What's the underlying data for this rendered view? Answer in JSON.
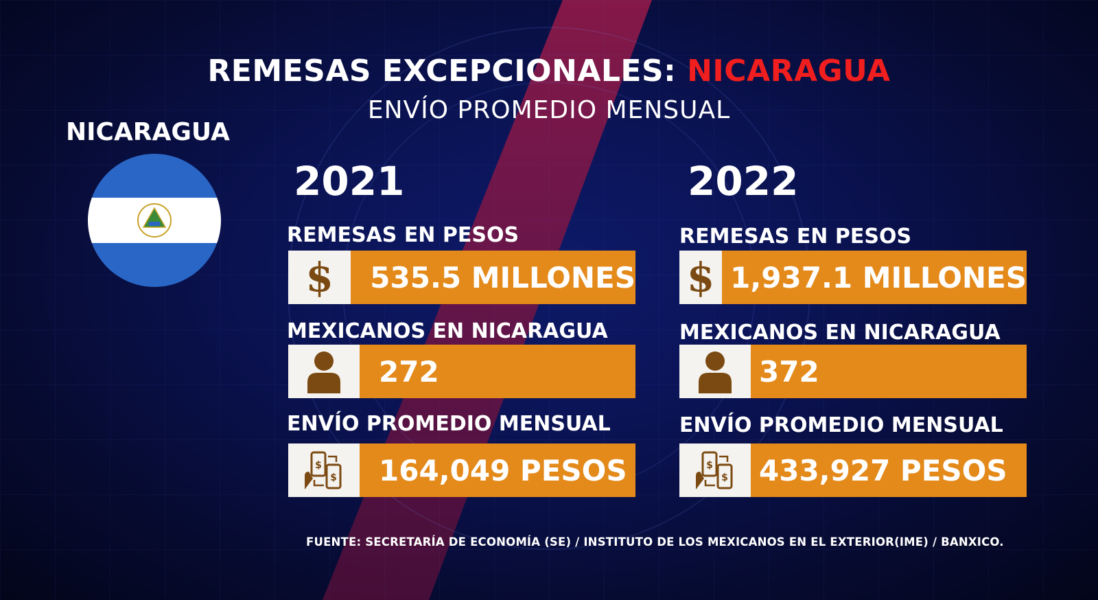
{
  "header": {
    "title_main": "REMESAS EXCEPCIONALES:",
    "title_highlight": "NICARAGUA",
    "subtitle": "ENVÍO PROMEDIO MENSUAL"
  },
  "country": {
    "name": "NICARAGUA"
  },
  "columns": [
    {
      "year": "2021",
      "remesas_label": "REMESAS EN PESOS",
      "remesas_value": "535.5 MILLONES",
      "mexicanos_label": "MEXICANOS EN NICARAGUA",
      "mexicanos_value": "272",
      "envio_label": "ENVÍO PROMEDIO MENSUAL",
      "envio_value": "164,049 PESOS"
    },
    {
      "year": "2022",
      "remesas_label": "REMESAS EN PESOS",
      "remesas_value": "1,937.1 MILLONES",
      "mexicanos_label": "MEXICANOS EN NICARAGUA",
      "mexicanos_value": "372",
      "envio_label": "ENVÍO PROMEDIO MENSUAL",
      "envio_value": "433,927 PESOS"
    }
  ],
  "icons": {
    "money": "dollar-sign-icon",
    "person": "person-icon",
    "transfer": "phone-transfer-icon",
    "dollar_glyph": "$"
  },
  "colors": {
    "accent_orange": "#e48a1b",
    "title_red": "#f01e1e",
    "icon_brown": "#7b4a12",
    "flag_blue": "#2a66c6"
  },
  "source": "FUENTE: SECRETARÍA DE ECONOMÍA (SE) / INSTITUTO DE LOS MEXICANOS EN EL EXTERIOR(IME) / BANXICO."
}
